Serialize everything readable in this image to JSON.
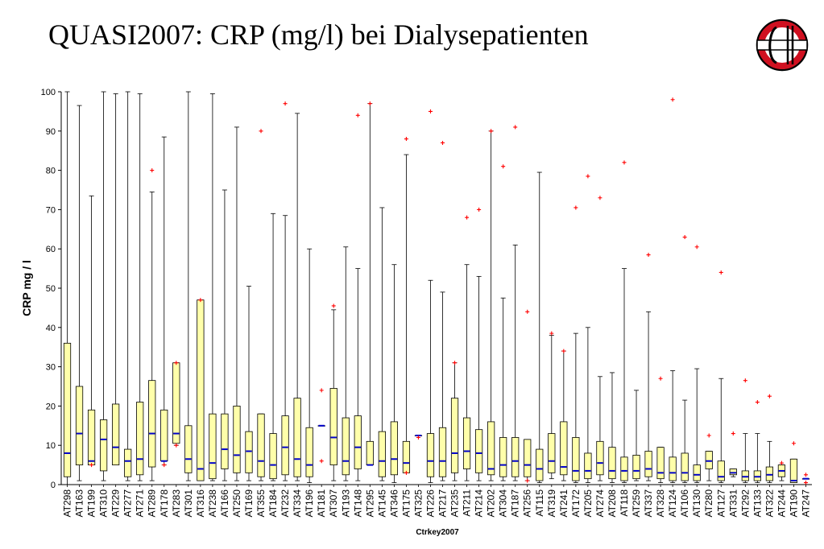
{
  "title": "QUASI2007: CRP (mg/l) bei Dialysepatienten",
  "colors": {
    "box_fill": "#ffffaa",
    "box_stroke": "#000000",
    "median": "#0000cc",
    "outlier": "#ff0000",
    "logo_red": "#d01020"
  },
  "chart_data": {
    "type": "boxplot",
    "xlabel": "Ctrkey2007",
    "ylabel": "CRP mg / l",
    "ylim": [
      0,
      100
    ],
    "yticks": [
      0,
      10,
      20,
      30,
      40,
      50,
      60,
      70,
      80,
      90,
      100
    ],
    "grid": false,
    "categories": [
      "AT298",
      "AT163",
      "AT199",
      "AT310",
      "AT229",
      "AT277",
      "AT271",
      "AT289",
      "AT178",
      "AT283",
      "AT301",
      "AT316",
      "AT238",
      "AT166",
      "AT250",
      "AT169",
      "AT355",
      "AT184",
      "AT232",
      "AT334",
      "AT196",
      "AT181",
      "AT307",
      "AT193",
      "AT148",
      "AT295",
      "AT145",
      "AT346",
      "AT175",
      "AT325",
      "AT226",
      "AT217",
      "AT235",
      "AT211",
      "AT214",
      "AT202",
      "AT304",
      "AT187",
      "AT256",
      "AT115",
      "AT319",
      "AT241",
      "AT172",
      "AT205",
      "AT274",
      "AT208",
      "AT118",
      "AT259",
      "AT337",
      "AT328",
      "AT124",
      "AT106",
      "AT130",
      "AT280",
      "AT127",
      "AT331",
      "AT292",
      "AT133",
      "AT322",
      "AT244",
      "AT190",
      "AT247"
    ],
    "boxes": [
      {
        "min": 0,
        "q1": 2,
        "median": 8,
        "q3": 36,
        "max": 100,
        "outliers": []
      },
      {
        "min": 1,
        "q1": 5,
        "median": 13,
        "q3": 25,
        "max": 96.5,
        "outliers": []
      },
      {
        "min": 5,
        "q1": 5,
        "median": 6,
        "q3": 19,
        "max": 73.5,
        "outliers": [
          5
        ]
      },
      {
        "min": 1,
        "q1": 3.5,
        "median": 11.5,
        "q3": 16.5,
        "max": 100,
        "outliers": []
      },
      {
        "min": 5,
        "q1": 5,
        "median": 9.5,
        "q3": 20.5,
        "max": 99.5,
        "outliers": []
      },
      {
        "min": 1,
        "q1": 2,
        "median": 6,
        "q3": 9,
        "max": 100,
        "outliers": []
      },
      {
        "min": 1,
        "q1": 2.5,
        "median": 6.5,
        "q3": 21,
        "max": 99.5,
        "outliers": []
      },
      {
        "min": 1,
        "q1": 4.5,
        "median": 13,
        "q3": 26.5,
        "max": 74.5,
        "outliers": [
          80
        ]
      },
      {
        "min": 5,
        "q1": 6,
        "median": 6,
        "q3": 19,
        "max": 88.5,
        "outliers": [
          5
        ]
      },
      {
        "min": 10,
        "q1": 10.5,
        "median": 13,
        "q3": 31,
        "max": 31,
        "outliers": [
          10,
          31
        ]
      },
      {
        "min": 1,
        "q1": 3,
        "median": 6.5,
        "q3": 15,
        "max": 100,
        "outliers": []
      },
      {
        "min": 1,
        "q1": 1,
        "median": 4,
        "q3": 47,
        "max": 47,
        "outliers": [
          47
        ]
      },
      {
        "min": 1,
        "q1": 1.5,
        "median": 5.5,
        "q3": 18,
        "max": 99.5,
        "outliers": []
      },
      {
        "min": 1,
        "q1": 4,
        "median": 9,
        "q3": 18,
        "max": 75,
        "outliers": []
      },
      {
        "min": 1,
        "q1": 3,
        "median": 7.5,
        "q3": 20,
        "max": 91,
        "outliers": []
      },
      {
        "min": 1,
        "q1": 3,
        "median": 8.5,
        "q3": 13.5,
        "max": 50.5,
        "outliers": []
      },
      {
        "min": 1,
        "q1": 2,
        "median": 6,
        "q3": 18,
        "max": 18,
        "outliers": [
          90
        ]
      },
      {
        "min": 1,
        "q1": 1.5,
        "median": 5,
        "q3": 13,
        "max": 69,
        "outliers": []
      },
      {
        "min": 1,
        "q1": 2.5,
        "median": 9.5,
        "q3": 17.5,
        "max": 68.5,
        "outliers": [
          97
        ]
      },
      {
        "min": 1,
        "q1": 2,
        "median": 6.5,
        "q3": 22,
        "max": 94.5,
        "outliers": []
      },
      {
        "min": 0.5,
        "q1": 2,
        "median": 5,
        "q3": 14.5,
        "max": 60,
        "outliers": []
      },
      {
        "min": 15,
        "q1": 15,
        "median": 15,
        "q3": 15,
        "max": 15,
        "outliers": [
          24,
          6
        ]
      },
      {
        "min": 1,
        "q1": 5,
        "median": 12,
        "q3": 24.5,
        "max": 44.5,
        "outliers": [
          45.5
        ]
      },
      {
        "min": 1,
        "q1": 2.5,
        "median": 6,
        "q3": 17,
        "max": 60.5,
        "outliers": []
      },
      {
        "min": 1,
        "q1": 4,
        "median": 9.5,
        "q3": 17.5,
        "max": 55,
        "outliers": [
          94
        ]
      },
      {
        "min": 5,
        "q1": 5,
        "median": 5,
        "q3": 11,
        "max": 97,
        "outliers": [
          97
        ]
      },
      {
        "min": 1,
        "q1": 2,
        "median": 6,
        "q3": 13.5,
        "max": 70.5,
        "outliers": []
      },
      {
        "min": 0.5,
        "q1": 2.5,
        "median": 6.5,
        "q3": 16,
        "max": 56,
        "outliers": []
      },
      {
        "min": 3,
        "q1": 3,
        "median": 5.5,
        "q3": 11,
        "max": 84,
        "outliers": [
          3,
          88
        ]
      },
      {
        "min": 12.5,
        "q1": 12.5,
        "median": 12.5,
        "q3": 12.5,
        "max": 12.5,
        "outliers": [
          12
        ]
      },
      {
        "min": 0.5,
        "q1": 2,
        "median": 6,
        "q3": 13,
        "max": 52,
        "outliers": [
          95
        ]
      },
      {
        "min": 1,
        "q1": 2,
        "median": 6,
        "q3": 14.5,
        "max": 49,
        "outliers": [
          87
        ]
      },
      {
        "min": 1,
        "q1": 3,
        "median": 8,
        "q3": 22,
        "max": 31,
        "outliers": [
          31
        ]
      },
      {
        "min": 1,
        "q1": 4,
        "median": 8.5,
        "q3": 17,
        "max": 56,
        "outliers": [
          68
        ]
      },
      {
        "min": 1,
        "q1": 3,
        "median": 8,
        "q3": 14,
        "max": 53,
        "outliers": [
          70
        ]
      },
      {
        "min": 1,
        "q1": 2.5,
        "median": 4,
        "q3": 16,
        "max": 90,
        "outliers": [
          90
        ]
      },
      {
        "min": 1,
        "q1": 2,
        "median": 5,
        "q3": 12,
        "max": 47.5,
        "outliers": [
          81
        ]
      },
      {
        "min": 1,
        "q1": 2,
        "median": 6,
        "q3": 12,
        "max": 61,
        "outliers": [
          91
        ]
      },
      {
        "min": 1,
        "q1": 2,
        "median": 5,
        "q3": 11.5,
        "max": 11.5,
        "outliers": [
          44,
          1
        ]
      },
      {
        "min": 0.5,
        "q1": 1,
        "median": 4,
        "q3": 9,
        "max": 79.5,
        "outliers": []
      },
      {
        "min": 1.5,
        "q1": 3,
        "median": 6,
        "q3": 13,
        "max": 38,
        "outliers": [
          38.5
        ]
      },
      {
        "min": 1,
        "q1": 2.5,
        "median": 4.5,
        "q3": 16,
        "max": 34,
        "outliers": [
          34
        ]
      },
      {
        "min": 0.5,
        "q1": 1,
        "median": 3.5,
        "q3": 12,
        "max": 38.5,
        "outliers": [
          70.5
        ]
      },
      {
        "min": 0.5,
        "q1": 1.5,
        "median": 3.5,
        "q3": 8,
        "max": 40,
        "outliers": [
          78.5
        ]
      },
      {
        "min": 1,
        "q1": 2.5,
        "median": 5.5,
        "q3": 11,
        "max": 27.5,
        "outliers": [
          73
        ]
      },
      {
        "min": 0.5,
        "q1": 1.5,
        "median": 3.5,
        "q3": 9.5,
        "max": 28.5,
        "outliers": []
      },
      {
        "min": 0.5,
        "q1": 1,
        "median": 3.5,
        "q3": 7,
        "max": 55,
        "outliers": [
          82
        ]
      },
      {
        "min": 1,
        "q1": 1.5,
        "median": 3.5,
        "q3": 7.5,
        "max": 24,
        "outliers": []
      },
      {
        "min": 1,
        "q1": 2,
        "median": 4,
        "q3": 8.5,
        "max": 44,
        "outliers": [
          58.5
        ]
      },
      {
        "min": 0.5,
        "q1": 1.5,
        "median": 3,
        "q3": 9.5,
        "max": 9.5,
        "outliers": [
          27
        ]
      },
      {
        "min": 0.5,
        "q1": 1,
        "median": 3,
        "q3": 7,
        "max": 29,
        "outliers": [
          98
        ]
      },
      {
        "min": 0.5,
        "q1": 1,
        "median": 3,
        "q3": 8,
        "max": 21.5,
        "outliers": [
          63
        ]
      },
      {
        "min": 0.5,
        "q1": 1,
        "median": 2.5,
        "q3": 5,
        "max": 29.5,
        "outliers": [
          60.5
        ]
      },
      {
        "min": 1,
        "q1": 4,
        "median": 6,
        "q3": 8.5,
        "max": 8.5,
        "outliers": [
          12.5
        ]
      },
      {
        "min": 0.5,
        "q1": 1,
        "median": 2,
        "q3": 6,
        "max": 27,
        "outliers": [
          54
        ]
      },
      {
        "min": 2,
        "q1": 2.5,
        "median": 3,
        "q3": 4,
        "max": 4,
        "outliers": [
          13
        ]
      },
      {
        "min": 0.5,
        "q1": 1,
        "median": 2,
        "q3": 3.5,
        "max": 13,
        "outliers": [
          26.5
        ]
      },
      {
        "min": 0.5,
        "q1": 1,
        "median": 2,
        "q3": 3.5,
        "max": 13,
        "outliers": [
          21
        ]
      },
      {
        "min": 0.5,
        "q1": 1,
        "median": 2.5,
        "q3": 4.5,
        "max": 11,
        "outliers": [
          22.5
        ]
      },
      {
        "min": 1,
        "q1": 2,
        "median": 3.5,
        "q3": 5,
        "max": 5,
        "outliers": [
          5.5
        ]
      },
      {
        "min": 0.5,
        "q1": 0.5,
        "median": 1,
        "q3": 6.5,
        "max": 6.5,
        "outliers": [
          10.5
        ]
      },
      {
        "min": 1.5,
        "q1": 1.5,
        "median": 1.5,
        "q3": 1.5,
        "max": 1.5,
        "outliers": [
          2.5,
          0.5
        ]
      }
    ]
  }
}
